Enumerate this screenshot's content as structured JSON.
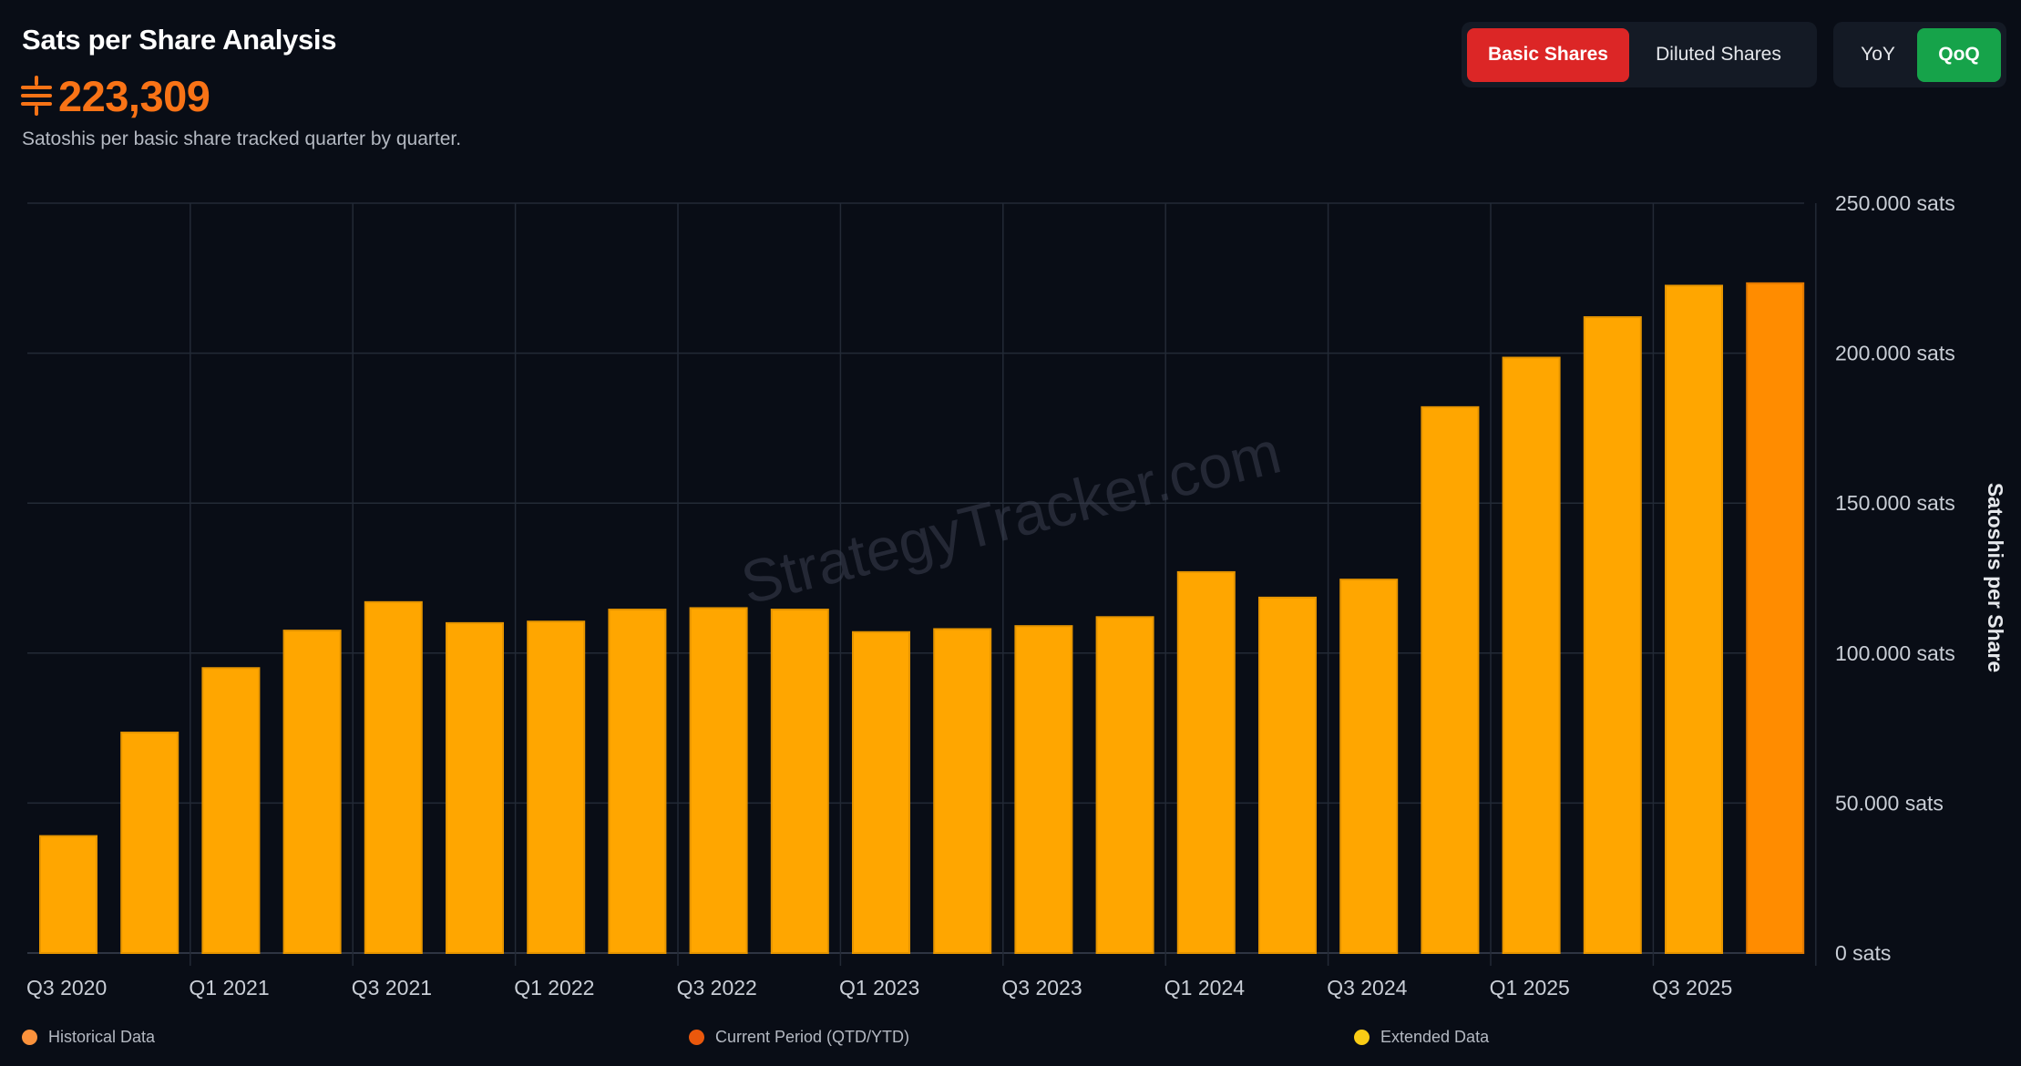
{
  "header": {
    "title": "Sats per Share Analysis",
    "value": "223,309",
    "subtitle": "Satoshis per basic share tracked quarter by quarter."
  },
  "toggles": {
    "shares": [
      {
        "label": "Basic Shares",
        "active": true
      },
      {
        "label": "Diluted Shares",
        "active": false
      }
    ],
    "period": [
      {
        "label": "YoY",
        "active": false
      },
      {
        "label": "QoQ",
        "active": true
      }
    ]
  },
  "colors": {
    "accent": "#f97316",
    "bar": "#ffa600",
    "bar_current": "#ff8c00",
    "active_red": "#dc2626",
    "active_green": "#16a34a",
    "background": "#090d16"
  },
  "watermark": "StrategyTracker.com",
  "chart_data": {
    "type": "bar",
    "categories": [
      "Q3 2020",
      "Q4 2020",
      "Q1 2021",
      "Q2 2021",
      "Q3 2021",
      "Q4 2021",
      "Q1 2022",
      "Q2 2022",
      "Q3 2022",
      "Q4 2022",
      "Q1 2023",
      "Q2 2023",
      "Q3 2023",
      "Q4 2023",
      "Q1 2024",
      "Q2 2024",
      "Q3 2024",
      "Q4 2024",
      "Q1 2025",
      "Q2 2025",
      "Q3 2025",
      "Q4 2025"
    ],
    "x_tick_labels": [
      "Q3 2020",
      "Q1 2021",
      "Q3 2021",
      "Q1 2022",
      "Q3 2022",
      "Q1 2023",
      "Q3 2023",
      "Q1 2024",
      "Q3 2024",
      "Q1 2025",
      "Q3 2025"
    ],
    "values": [
      39000,
      73500,
      95000,
      107500,
      117000,
      110000,
      110500,
      114500,
      115000,
      114500,
      107000,
      108000,
      109000,
      112000,
      127000,
      118500,
      124500,
      182000,
      198500,
      212000,
      222500,
      223309
    ],
    "current_index": 21,
    "ylim": [
      0,
      250000
    ],
    "yticks": [
      {
        "value": 0,
        "label": "0 sats"
      },
      {
        "value": 50000,
        "label": "50.000 sats"
      },
      {
        "value": 100000,
        "label": "100.000 sats"
      },
      {
        "value": 150000,
        "label": "150.000 sats"
      },
      {
        "value": 200000,
        "label": "200.000 sats"
      },
      {
        "value": 250000,
        "label": "250.000 sats"
      }
    ],
    "ylabel": "Satoshis per Share",
    "xlabel": "",
    "grid": true,
    "y_axis_side": "right",
    "legend_position": "bottom",
    "legend": [
      {
        "label": "Historical Data",
        "color": "#fb923c"
      },
      {
        "label": "Current Period (QTD/YTD)",
        "color": "#ea580c"
      },
      {
        "label": "Extended Data",
        "color": "#facc15"
      }
    ]
  }
}
